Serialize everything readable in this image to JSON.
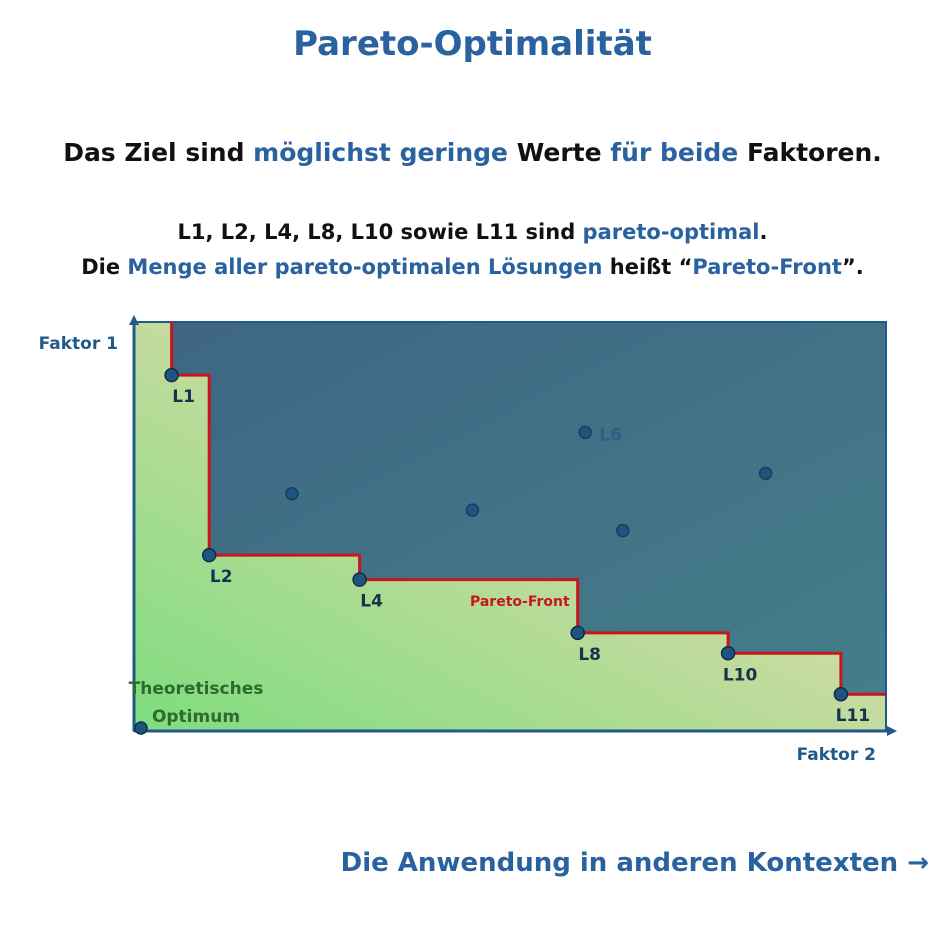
{
  "title": "Pareto-Optimalität",
  "goal": {
    "p1": "Das Ziel sind ",
    "h1": "möglichst geringe",
    "p2": " Werte ",
    "h2": "für beide",
    "p3": " Faktoren."
  },
  "info1": {
    "p1": "L1, L2, L4, L8, L10 sowie L11 sind ",
    "h1": "pareto-optimal",
    "p2": "."
  },
  "info2": {
    "p1": "Die ",
    "h1": "Menge aller pareto-optimalen Lösungen",
    "p2": " heißt “",
    "h2": "Pareto-Front",
    "p3": "”."
  },
  "link": {
    "label": "Die Anwendung in anderen Kontexten",
    "arrow": "→"
  },
  "chart_data": {
    "type": "scatter",
    "xlabel": "Faktor 2",
    "ylabel": "Faktor 1",
    "xlim": [
      0,
      100
    ],
    "ylim": [
      0,
      100
    ],
    "grid": false,
    "pareto_points": [
      {
        "label": "L1",
        "x": 5,
        "y": 87
      },
      {
        "label": "L2",
        "x": 10,
        "y": 43
      },
      {
        "label": "L4",
        "x": 30,
        "y": 37
      },
      {
        "label": "L8",
        "x": 59,
        "y": 24
      },
      {
        "label": "L10",
        "x": 79,
        "y": 19
      },
      {
        "label": "L11",
        "x": 94,
        "y": 9
      }
    ],
    "dominated_points": [
      {
        "label": "L6",
        "x": 60,
        "y": 73
      },
      {
        "label": "",
        "x": 21,
        "y": 58
      },
      {
        "label": "",
        "x": 45,
        "y": 54
      },
      {
        "label": "",
        "x": 65,
        "y": 49
      },
      {
        "label": "",
        "x": 84,
        "y": 63
      }
    ],
    "ideal_point": {
      "label": "Theoretisches Optimum",
      "x": 0,
      "y": 0
    },
    "front_label": "Pareto-Front",
    "colors": {
      "axis": "#1f5a8a",
      "front": "#c8161d",
      "point": "#1e5580",
      "dominated_area": "#3e6f86",
      "feasible_good": "#7edc7e",
      "feasible_mid": "#c9dba0",
      "feasible_far": "#f0e2b4",
      "label_text": "#14344d",
      "ideal_text": "#2c6b2c",
      "front_text": "#c8161d"
    }
  }
}
